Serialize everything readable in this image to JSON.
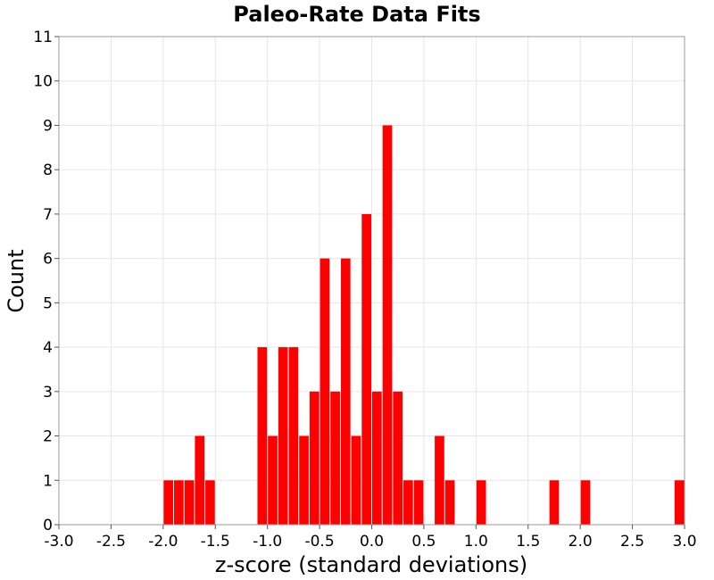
{
  "chart_data": {
    "type": "bar",
    "title": "Paleo-Rate Data Fits",
    "xlabel": "z-score (standard deviations)",
    "ylabel": "Count",
    "xlim": [
      -3.0,
      3.0
    ],
    "ylim": [
      0,
      11
    ],
    "grid": true,
    "bar_color": "#ff0000",
    "bin_width": 0.1,
    "x_ticks": [
      "-3.0",
      "-2.5",
      "-2.0",
      "-1.5",
      "-1.0",
      "-0.5",
      "0.0",
      "0.5",
      "1.0",
      "1.5",
      "2.0",
      "2.5",
      "3.0"
    ],
    "y_ticks": [
      "0",
      "1",
      "2",
      "3",
      "4",
      "5",
      "6",
      "7",
      "8",
      "9",
      "10",
      "11"
    ],
    "bins": [
      {
        "x_start": -2.0,
        "value": 1
      },
      {
        "x_start": -1.9,
        "value": 1
      },
      {
        "x_start": -1.8,
        "value": 1
      },
      {
        "x_start": -1.7,
        "value": 2
      },
      {
        "x_start": -1.6,
        "value": 1
      },
      {
        "x_start": -1.1,
        "value": 4
      },
      {
        "x_start": -1.0,
        "value": 2
      },
      {
        "x_start": -0.9,
        "value": 4
      },
      {
        "x_start": -0.8,
        "value": 4
      },
      {
        "x_start": -0.7,
        "value": 2
      },
      {
        "x_start": -0.6,
        "value": 3
      },
      {
        "x_start": -0.5,
        "value": 6
      },
      {
        "x_start": -0.4,
        "value": 3
      },
      {
        "x_start": -0.3,
        "value": 6
      },
      {
        "x_start": -0.2,
        "value": 2
      },
      {
        "x_start": -0.1,
        "value": 7
      },
      {
        "x_start": 0.0,
        "value": 3
      },
      {
        "x_start": 0.1,
        "value": 9
      },
      {
        "x_start": 0.2,
        "value": 3
      },
      {
        "x_start": 0.3,
        "value": 1
      },
      {
        "x_start": 0.4,
        "value": 1
      },
      {
        "x_start": 0.6,
        "value": 2
      },
      {
        "x_start": 0.7,
        "value": 1
      },
      {
        "x_start": 1.0,
        "value": 1
      },
      {
        "x_start": 1.7,
        "value": 1
      },
      {
        "x_start": 2.0,
        "value": 1
      },
      {
        "x_start": 2.9,
        "value": 1
      }
    ]
  }
}
